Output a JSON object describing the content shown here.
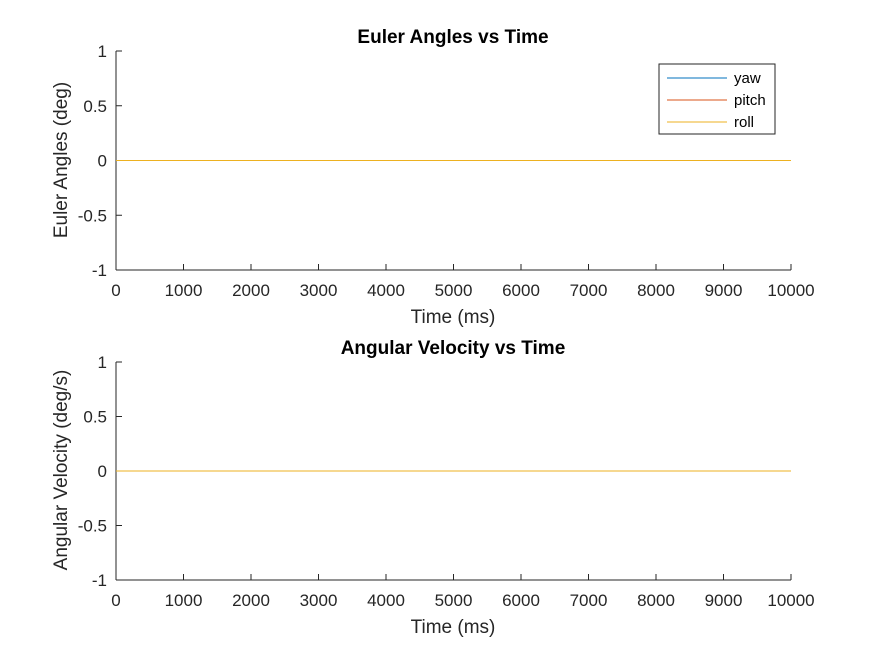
{
  "chart_data": [
    {
      "type": "line",
      "title": "Euler Angles vs Time",
      "xlabel": "Time (ms)",
      "ylabel": "Euler Angles (deg)",
      "xlim": [
        0,
        10000
      ],
      "ylim": [
        -1,
        1
      ],
      "xticks": [
        "0",
        "1000",
        "2000",
        "3000",
        "4000",
        "5000",
        "6000",
        "7000",
        "8000",
        "9000",
        "10000"
      ],
      "yticks": [
        "1",
        "0.5",
        "0",
        "-0.5",
        "-1"
      ],
      "grid": false,
      "legend_position": "top-right",
      "series": [
        {
          "name": "yaw",
          "color": "#0072BD",
          "x": [
            0,
            10000
          ],
          "y": [
            0,
            0
          ]
        },
        {
          "name": "pitch",
          "color": "#D95319",
          "x": [
            0,
            10000
          ],
          "y": [
            0,
            0
          ]
        },
        {
          "name": "roll",
          "color": "#EDB120",
          "x": [
            0,
            10000
          ],
          "y": [
            0,
            0
          ]
        }
      ]
    },
    {
      "type": "line",
      "title": "Angular Velocity vs Time",
      "xlabel": "Time (ms)",
      "ylabel": "Angular Velocity (deg/s)",
      "xlim": [
        0,
        10000
      ],
      "ylim": [
        -1,
        1
      ],
      "xticks": [
        "0",
        "1000",
        "2000",
        "3000",
        "4000",
        "5000",
        "6000",
        "7000",
        "8000",
        "9000",
        "10000"
      ],
      "yticks": [
        "1",
        "0.5",
        "0",
        "-0.5",
        "-1"
      ],
      "grid": false,
      "series": [
        {
          "color": "#0072BD",
          "x": [
            0,
            10000
          ],
          "y": [
            0,
            0
          ]
        },
        {
          "color": "#D95319",
          "x": [
            0,
            10000
          ],
          "y": [
            0,
            0
          ]
        },
        {
          "color": "#EDB120",
          "x": [
            0,
            10000
          ],
          "y": [
            0,
            0
          ]
        }
      ]
    }
  ]
}
